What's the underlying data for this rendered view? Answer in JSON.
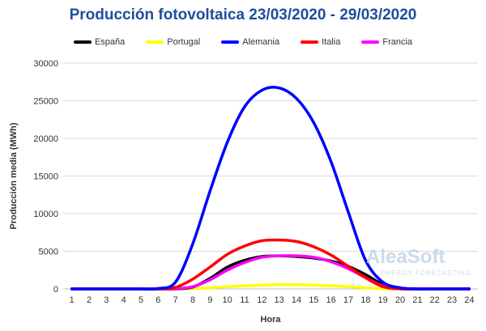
{
  "chart_data": {
    "type": "line",
    "title": "Producción fotovoltaica 23/03/2020 - 29/03/2020",
    "xlabel": "Hora",
    "ylabel": "Producción media (MWh)",
    "categories": [
      "1",
      "2",
      "3",
      "4",
      "5",
      "6",
      "7",
      "8",
      "9",
      "10",
      "11",
      "12",
      "13",
      "14",
      "15",
      "16",
      "17",
      "18",
      "19",
      "20",
      "21",
      "22",
      "23",
      "24"
    ],
    "ylim": [
      0,
      30000
    ],
    "yticks": [
      "0",
      "5000",
      "10000",
      "15000",
      "20000",
      "25000",
      "30000"
    ],
    "grid": "horizontal",
    "legend_position": "top",
    "title_color": "#1f4e9c",
    "series": [
      {
        "name": "España",
        "color": "#000000",
        "values": [
          0,
          0,
          0,
          0,
          0,
          0,
          0,
          250,
          1400,
          2900,
          3800,
          4300,
          4400,
          4300,
          4100,
          3700,
          3000,
          1900,
          600,
          100,
          0,
          0,
          0,
          0
        ]
      },
      {
        "name": "Portugal",
        "color": "#ffff00",
        "values": [
          0,
          0,
          0,
          0,
          0,
          0,
          0,
          30,
          150,
          300,
          420,
          520,
          570,
          560,
          520,
          430,
          300,
          150,
          40,
          0,
          0,
          0,
          0,
          0
        ]
      },
      {
        "name": "Alemania",
        "color": "#0000ff",
        "values": [
          0,
          0,
          0,
          0,
          0,
          50,
          900,
          6000,
          13000,
          19500,
          24200,
          26400,
          26700,
          25300,
          22100,
          16900,
          10200,
          3800,
          900,
          150,
          0,
          0,
          0,
          0
        ]
      },
      {
        "name": "Italia",
        "color": "#ff0000",
        "values": [
          0,
          0,
          0,
          0,
          0,
          0,
          200,
          1300,
          2900,
          4600,
          5700,
          6400,
          6500,
          6300,
          5600,
          4500,
          3000,
          1500,
          300,
          0,
          0,
          0,
          0,
          0
        ]
      },
      {
        "name": "Francia",
        "color": "#ff00ff",
        "values": [
          0,
          0,
          0,
          0,
          0,
          0,
          30,
          300,
          1200,
          2500,
          3500,
          4200,
          4400,
          4400,
          4200,
          3600,
          2700,
          1500,
          400,
          50,
          0,
          0,
          0,
          0
        ]
      }
    ]
  },
  "watermark": {
    "brand": "AleaSoft",
    "tagline": "ENERGY FORECASTING"
  }
}
